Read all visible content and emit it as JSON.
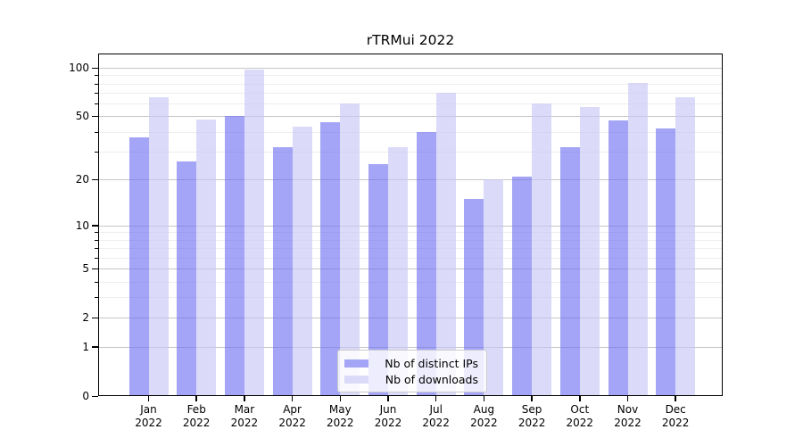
{
  "title": "rTRMui 2022",
  "chart_data": {
    "type": "bar",
    "title": "rTRMui 2022",
    "categories": [
      "Jan 2022",
      "Feb 2022",
      "Mar 2022",
      "Apr 2022",
      "May 2022",
      "Jun 2022",
      "Jul 2022",
      "Aug 2022",
      "Sep 2022",
      "Oct 2022",
      "Nov 2022",
      "Dec 2022"
    ],
    "months": [
      "Jan",
      "Feb",
      "Mar",
      "Apr",
      "May",
      "Jun",
      "Jul",
      "Aug",
      "Sep",
      "Oct",
      "Nov",
      "Dec"
    ],
    "year": "2022",
    "series": [
      {
        "name": "Nb of distinct IPs",
        "values": [
          37,
          26,
          50,
          32,
          46,
          25,
          40,
          15,
          21,
          32,
          47,
          42
        ],
        "bar_color": "rgba(112,112,242,0.63)",
        "swatch_color": "#a5a5f7"
      },
      {
        "name": "Nb of downloads",
        "values": [
          66,
          48,
          98,
          43,
          60,
          32,
          70,
          20,
          60,
          57,
          81,
          66
        ],
        "bar_color": "rgba(200,200,246,0.65)",
        "swatch_color": "#dbdbf9"
      }
    ],
    "xlabel": "",
    "ylabel": "",
    "yscale": "log1p",
    "ylim": [
      0,
      110
    ],
    "y_major_ticks": [
      100,
      50,
      20,
      10,
      5,
      2,
      1,
      0
    ],
    "y_minor_ticks": [
      90,
      80,
      70,
      60,
      40,
      30,
      9,
      8,
      7,
      6,
      4,
      3
    ],
    "grid": true,
    "legend_position": "lower center",
    "colors": {
      "grid_major": "#c6c6c6",
      "grid_minor": "#ededed",
      "axis": "#000000",
      "text": "#000000",
      "background": "#ffffff"
    }
  }
}
